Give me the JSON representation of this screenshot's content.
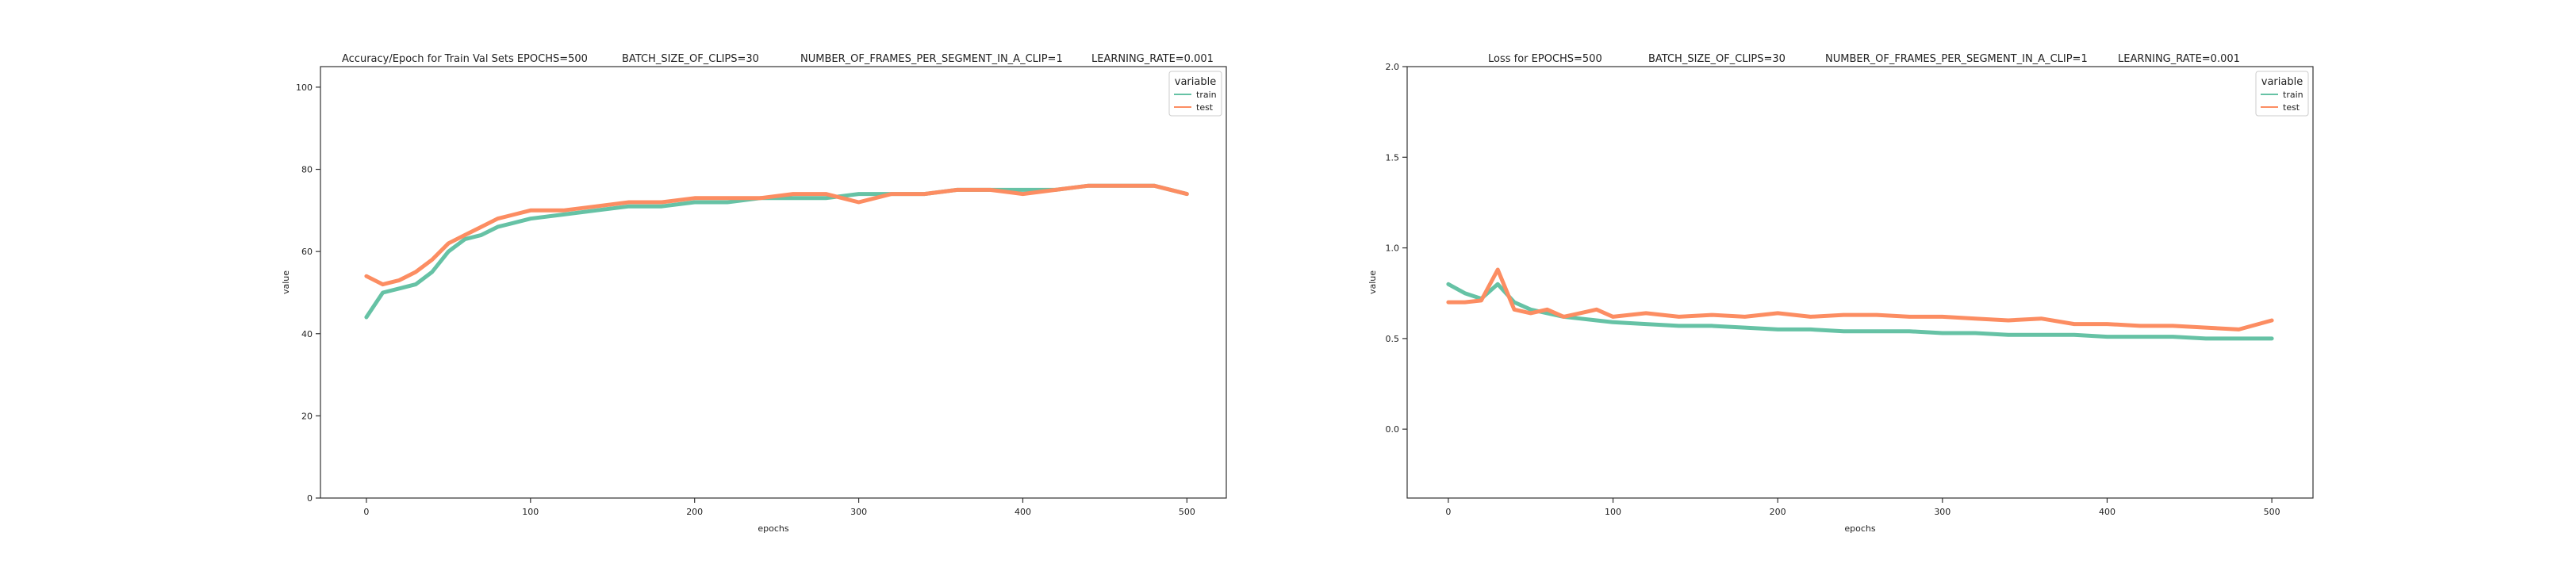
{
  "chart_data": [
    {
      "type": "line",
      "title_segments": [
        "Accuracy/Epoch for Train Val Sets EPOCHS=500",
        "BATCH_SIZE_OF_CLIPS=30",
        "NUMBER_OF_FRAMES_PER_SEGMENT_IN_A_CLIP=1",
        "LEARNING_RATE=0.001"
      ],
      "xlabel": "epochs",
      "ylabel": "value",
      "xlim": [
        -28,
        524
      ],
      "ylim": [
        0,
        105
      ],
      "xticks": [
        0,
        100,
        200,
        300,
        400,
        500
      ],
      "yticks": [
        0,
        20,
        40,
        60,
        80,
        100
      ],
      "legend": {
        "title": "variable",
        "position": "top-right",
        "entries": [
          "train",
          "test"
        ]
      },
      "x": [
        0,
        10,
        20,
        30,
        40,
        50,
        60,
        70,
        80,
        90,
        100,
        120,
        140,
        160,
        180,
        200,
        220,
        240,
        260,
        280,
        300,
        320,
        340,
        360,
        380,
        400,
        420,
        440,
        460,
        480,
        500
      ],
      "series": [
        {
          "name": "train",
          "color": "#66c2a5",
          "values": [
            44,
            50,
            51,
            52,
            55,
            60,
            63,
            64,
            66,
            67,
            68,
            69,
            70,
            71,
            71,
            72,
            72,
            73,
            73,
            73,
            74,
            74,
            74,
            75,
            75,
            75,
            75,
            76,
            76,
            76,
            74
          ]
        },
        {
          "name": "test",
          "color": "#fc8d62",
          "values": [
            54,
            52,
            53,
            55,
            58,
            62,
            64,
            66,
            68,
            69,
            70,
            70,
            71,
            72,
            72,
            73,
            73,
            73,
            74,
            74,
            72,
            74,
            74,
            75,
            75,
            74,
            75,
            76,
            76,
            76,
            74
          ]
        }
      ]
    },
    {
      "type": "line",
      "title_segments": [
        "Loss for  EPOCHS=500",
        "BATCH_SIZE_OF_CLIPS=30",
        "NUMBER_OF_FRAMES_PER_SEGMENT_IN_A_CLIP=1",
        "LEARNING_RATE=0.001"
      ],
      "xlabel": "epochs",
      "ylabel": "value",
      "xlim": [
        -25,
        525
      ],
      "ylim": [
        -0.38,
        2.0
      ],
      "xticks": [
        0,
        100,
        200,
        300,
        400,
        500
      ],
      "yticks": [
        0.0,
        0.5,
        1.0,
        1.5,
        2.0
      ],
      "ytick_labels": [
        "0.0",
        "0.5",
        "1.0",
        "1.5",
        "2.0"
      ],
      "legend": {
        "title": "variable",
        "position": "top-right",
        "entries": [
          "train",
          "test"
        ]
      },
      "x": [
        0,
        10,
        20,
        30,
        40,
        50,
        60,
        70,
        80,
        90,
        100,
        120,
        140,
        160,
        180,
        200,
        220,
        240,
        260,
        280,
        300,
        320,
        340,
        360,
        380,
        400,
        420,
        440,
        460,
        480,
        500
      ],
      "series": [
        {
          "name": "train",
          "color": "#66c2a5",
          "values": [
            0.8,
            0.75,
            0.72,
            0.8,
            0.7,
            0.66,
            0.64,
            0.62,
            0.61,
            0.6,
            0.59,
            0.58,
            0.57,
            0.57,
            0.56,
            0.55,
            0.55,
            0.54,
            0.54,
            0.54,
            0.53,
            0.53,
            0.52,
            0.52,
            0.52,
            0.51,
            0.51,
            0.51,
            0.5,
            0.5,
            0.5
          ]
        },
        {
          "name": "test",
          "color": "#fc8d62",
          "values": [
            0.7,
            0.7,
            0.71,
            0.88,
            0.66,
            0.64,
            0.66,
            0.62,
            0.64,
            0.66,
            0.62,
            0.64,
            0.62,
            0.63,
            0.62,
            0.64,
            0.62,
            0.63,
            0.63,
            0.62,
            0.62,
            0.61,
            0.6,
            0.61,
            0.58,
            0.58,
            0.57,
            0.57,
            0.56,
            0.55,
            0.6
          ]
        }
      ]
    }
  ]
}
